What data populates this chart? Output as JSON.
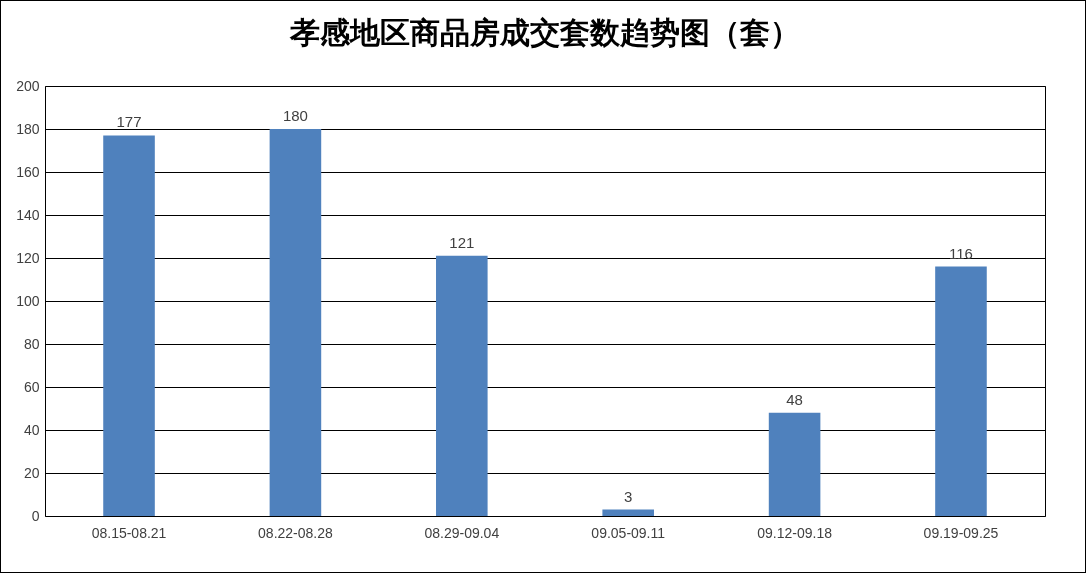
{
  "chart_data": {
    "type": "bar",
    "title": "孝感地区商品房成交套数趋势图（套）",
    "categories": [
      "08.15-08.21",
      "08.22-08.28",
      "08.29-09.04",
      "09.05-09.11",
      "09.12-09.18",
      "09.19-09.25"
    ],
    "values": [
      177,
      180,
      121,
      3,
      48,
      116
    ],
    "color": "#4f81bd",
    "ylim": [
      0,
      200
    ],
    "yticks": [
      0,
      20,
      40,
      60,
      80,
      100,
      120,
      140,
      160,
      180,
      200
    ],
    "grid": "y",
    "data_labels": true
  }
}
